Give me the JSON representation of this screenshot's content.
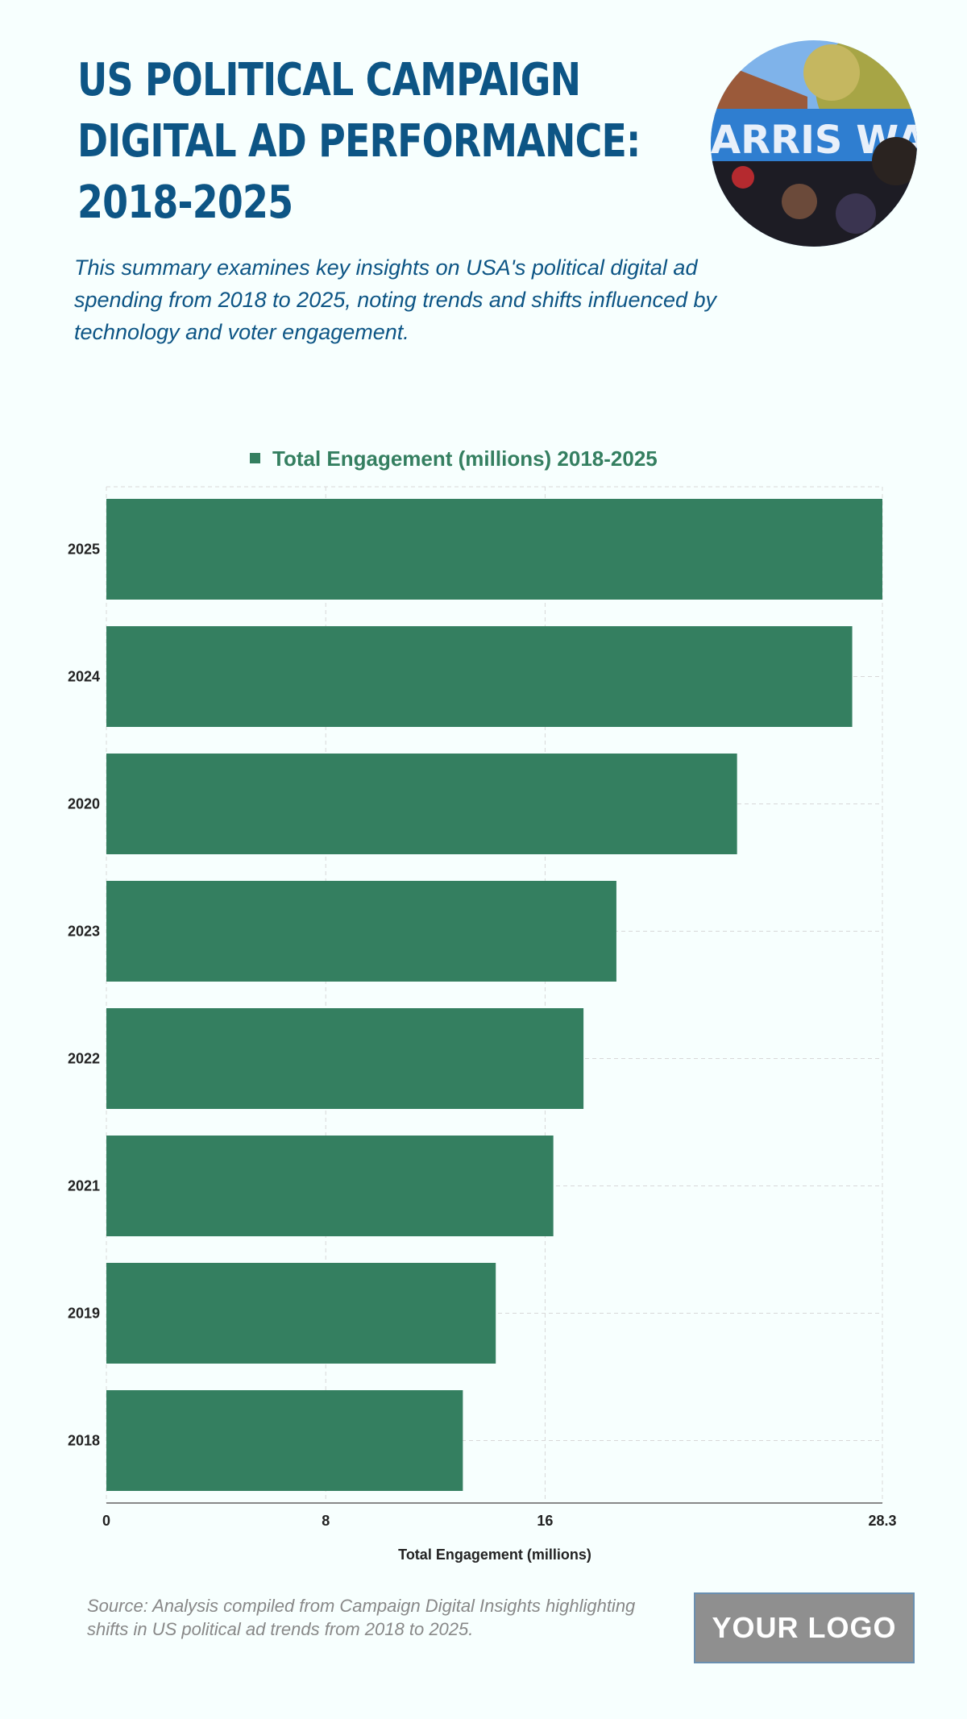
{
  "header": {
    "title": "US POLITICAL CAMPAIGN DIGITAL AD PERFORMANCE: 2018-2025",
    "subtitle": "This summary examines key insights on USA's political digital ad spending from 2018 to 2025, noting trends and shifts influenced by technology and voter engagement.",
    "photo_text": "ARRIS WALZ"
  },
  "chart_data": {
    "type": "bar",
    "orientation": "horizontal",
    "legend": "Total Engagement (millions) 2018-2025",
    "legend_placement": "top",
    "categories": [
      "2025",
      "2024",
      "2020",
      "2023",
      "2022",
      "2021",
      "2019",
      "2018"
    ],
    "series": [
      {
        "name": "Total Engagement (millions) 2018-2025",
        "values": [
          28.3,
          27.2,
          23.0,
          18.6,
          17.4,
          16.3,
          14.2,
          13.0
        ]
      }
    ],
    "xlabel": "Total Engagement (millions)",
    "ylabel": "",
    "xlim": [
      0,
      28.3
    ],
    "xticks": [
      "0",
      "8",
      "16",
      "28.3"
    ],
    "grid": true,
    "color": "#347f60"
  },
  "footer": {
    "source": "Source: Analysis compiled from Campaign Digital Insights highlighting shifts in US political ad trends from 2018 to 2025.",
    "logo": "YOUR LOGO"
  }
}
